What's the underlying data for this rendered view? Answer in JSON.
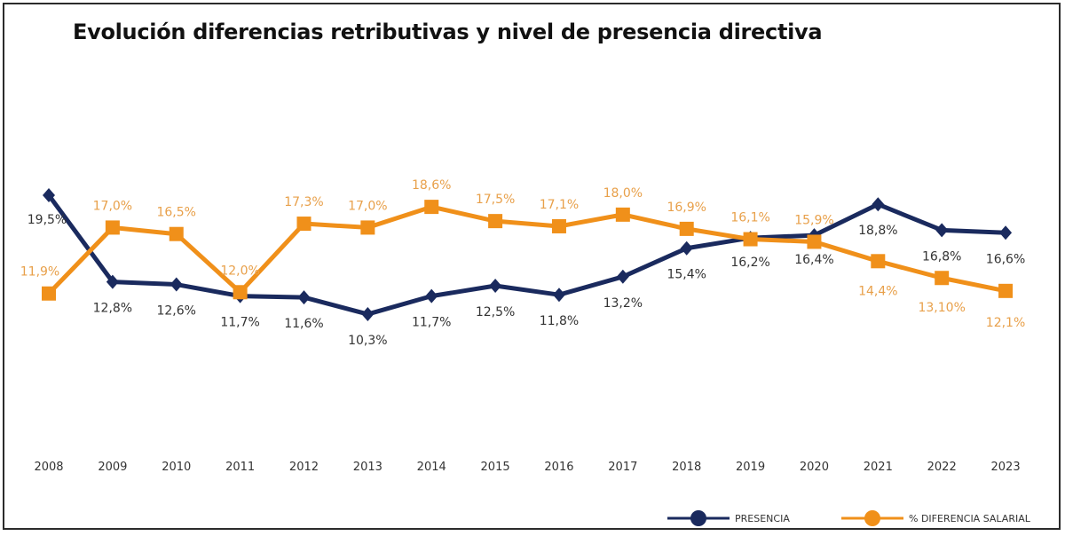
{
  "chart_data": {
    "type": "line",
    "title": "Evolución diferencias retributivas y nivel de presencia directiva",
    "xlabel": "",
    "ylabel": "",
    "x": [
      "2008",
      "2009",
      "2010",
      "2011",
      "2012",
      "2013",
      "2014",
      "2015",
      "2016",
      "2017",
      "2018",
      "2019",
      "2020",
      "2021",
      "2022",
      "2023"
    ],
    "grid": false,
    "legend_position": "bottom-right",
    "series": [
      {
        "name": "PRESENCIA",
        "color": "#1a2a5e",
        "marker": "diamond",
        "values": [
          19.5,
          12.8,
          12.6,
          11.7,
          11.6,
          10.3,
          11.7,
          12.5,
          11.8,
          13.2,
          15.4,
          16.2,
          16.4,
          18.8,
          16.8,
          16.6
        ],
        "labels": [
          "19,5%",
          "12,8%",
          "12,6%",
          "11,7%",
          "11,6%",
          "10,3%",
          "11,7%",
          "12,5%",
          "11,8%",
          "13,2%",
          "15,4%",
          "16,2%",
          "16,4%",
          "18,8%",
          "16,8%",
          "16,6%"
        ]
      },
      {
        "name": "% DIFERENCIA SALARIAL",
        "color": "#f0901a",
        "marker": "square",
        "values": [
          11.9,
          17.0,
          16.5,
          12.0,
          17.3,
          17.0,
          18.6,
          17.5,
          17.1,
          18.0,
          16.9,
          16.1,
          15.9,
          14.4,
          13.1,
          12.1
        ],
        "labels": [
          "11,9%",
          "17,0%",
          "16,5%",
          "12,0%",
          "17,3%",
          "17,0%",
          "18,6%",
          "17,5%",
          "17,1%",
          "18,0%",
          "16,9%",
          "16,1%",
          "15,9%",
          "14,4%",
          "13,10%",
          "12,1%"
        ]
      }
    ],
    "label_text_colors": {
      "PRESENCIA": "#333333",
      "% DIFERENCIA SALARIAL": "#e8a04a"
    }
  }
}
